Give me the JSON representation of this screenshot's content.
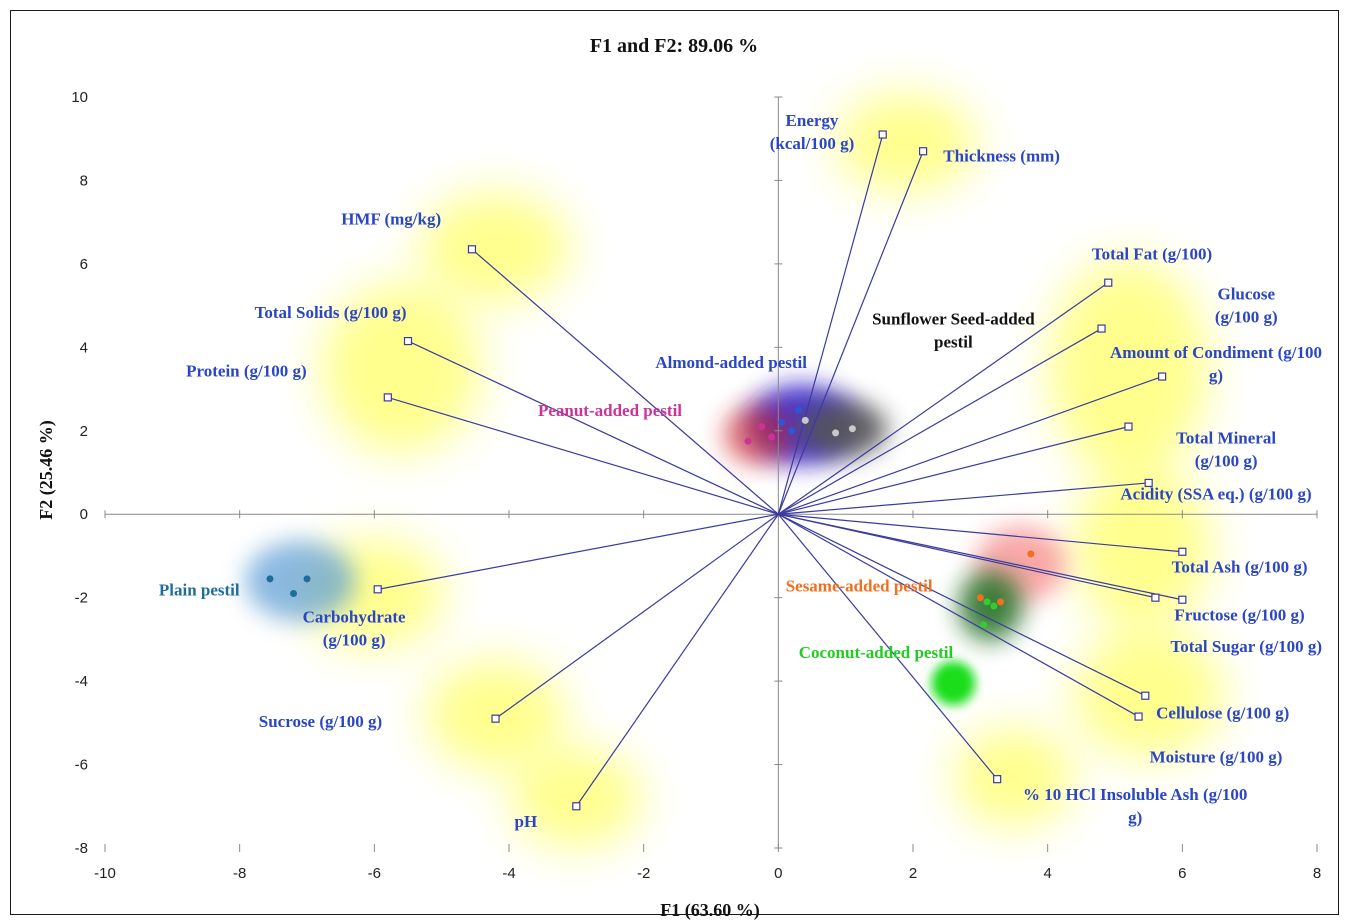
{
  "chart_data": {
    "type": "scatter",
    "title": "F1 and F2: 89.06 %",
    "xlabel": "F1 (63.60 %)",
    "ylabel": "F2 (25.46 %)",
    "xlim": [
      -10,
      8
    ],
    "ylim": [
      -8,
      10
    ],
    "x_ticks": [
      -10,
      -8,
      -6,
      -4,
      -2,
      0,
      2,
      4,
      6,
      8
    ],
    "y_ticks": [
      -8,
      -6,
      -4,
      -2,
      0,
      2,
      4,
      6,
      8,
      10
    ],
    "grid": false,
    "variables": [
      {
        "name": "Energy (kcal/100 g)",
        "label_lines": [
          "Energy",
          "(kcal/100 g)"
        ],
        "x": 1.55,
        "y": 9.1
      },
      {
        "name": "Thickness (mm)",
        "label_lines": [
          "Thickness (mm)"
        ],
        "x": 2.15,
        "y": 8.7
      },
      {
        "name": "HMF (mg/kg)",
        "label_lines": [
          "HMF (mg/kg)"
        ],
        "x": -4.55,
        "y": 6.35
      },
      {
        "name": "Total Solids (g/100 g)",
        "label_lines": [
          "Total Solids (g/100 g)"
        ],
        "x": -5.5,
        "y": 4.15
      },
      {
        "name": "Protein (g/100 g)",
        "label_lines": [
          "Protein  (g/100 g)"
        ],
        "x": -5.8,
        "y": 2.8
      },
      {
        "name": "Total Fat (g/100)",
        "label_lines": [
          "Total Fat (g/100)"
        ],
        "x": 4.9,
        "y": 5.55
      },
      {
        "name": "Glucose (g/100 g)",
        "label_lines": [
          "Glucose",
          "(g/100 g)"
        ],
        "x": 4.8,
        "y": 4.45
      },
      {
        "name": "Amount of Condiment (g/100 g)",
        "label_lines": [
          "Amount of Condiment (g/100",
          "g)"
        ],
        "x": 5.7,
        "y": 3.3
      },
      {
        "name": "Total Mineral (g/100 g)",
        "label_lines": [
          "Total Mineral",
          "(g/100 g)"
        ],
        "x": 5.2,
        "y": 2.1
      },
      {
        "name": "Acidity (SSA eq.) (g/100 g)",
        "label_lines": [
          "Acidity (SSA eq.) (g/100 g)"
        ],
        "x": 5.5,
        "y": 0.75
      },
      {
        "name": "Total Ash (g/100 g)",
        "label_lines": [
          "Total Ash (g/100 g)"
        ],
        "x": 6.0,
        "y": -0.9
      },
      {
        "name": "Fructose (g/100 g)",
        "label_lines": [
          "Fructose (g/100 g)"
        ],
        "x": 6.0,
        "y": -2.05
      },
      {
        "name": "Total Sugar (g/100 g)",
        "label_lines": [
          "Total Sugar (g/100 g)"
        ],
        "x": 5.6,
        "y": -2.0
      },
      {
        "name": "Cellulose (g/100 g)",
        "label_lines": [
          "Cellulose (g/100 g)"
        ],
        "x": 5.45,
        "y": -4.35
      },
      {
        "name": "Moisture (g/100 g)",
        "label_lines": [
          "Moisture (g/100 g)"
        ],
        "x": 5.35,
        "y": -4.85
      },
      {
        "name": "% 10 HCl Insoluble Ash (g/100 g)",
        "label_lines": [
          "% 10 HCl Insoluble Ash (g/100",
          "g)"
        ],
        "x": 3.25,
        "y": -6.35
      },
      {
        "name": "Carbohydrate (g/100 g)",
        "label_lines": [
          "Carbohydrate",
          "(g/100 g)"
        ],
        "x": -5.95,
        "y": -1.8
      },
      {
        "name": "Sucrose (g/100 g)",
        "label_lines": [
          "Sucrose  (g/100 g)"
        ],
        "x": -4.2,
        "y": -4.9
      },
      {
        "name": "pH",
        "label_lines": [
          "pH"
        ],
        "x": -3.0,
        "y": -7.0
      }
    ],
    "observations": [
      {
        "name": "Plain pestil",
        "label_lines": [
          "Plain pestil"
        ],
        "color": "#1f6e98",
        "points": [
          [
            -7.55,
            -1.55
          ],
          [
            -7.2,
            -1.9
          ],
          [
            -7.0,
            -1.55
          ]
        ]
      },
      {
        "name": "Almond-added pestil",
        "label_lines": [
          "Almond-added pestil"
        ],
        "color": "#2e56d8",
        "points": [
          [
            0.05,
            2.2
          ],
          [
            0.3,
            2.5
          ],
          [
            0.2,
            2.0
          ]
        ]
      },
      {
        "name": "Peanut-added pestil",
        "label_lines": [
          "Peanut-added pestil"
        ],
        "color": "#cc3399",
        "points": [
          [
            -0.25,
            2.1
          ],
          [
            -0.45,
            1.75
          ],
          [
            -0.1,
            1.85
          ]
        ]
      },
      {
        "name": "Sunflower Seed-added pestil",
        "label_lines": [
          "Sunflower  Seed-added",
          "pestil"
        ],
        "color": "#c9c9c9",
        "points": [
          [
            0.4,
            2.25
          ],
          [
            0.85,
            1.95
          ],
          [
            1.1,
            2.05
          ]
        ]
      },
      {
        "name": "Sesame-added pestil",
        "label_lines": [
          "Sesame-added pestil"
        ],
        "color": "#f07020",
        "points": [
          [
            3.75,
            -0.95
          ],
          [
            3.0,
            -2.0
          ],
          [
            3.3,
            -2.1
          ]
        ]
      },
      {
        "name": "Coconut-added pestil",
        "label_lines": [
          "Coconut-added pestil"
        ],
        "color": "#33cc33",
        "points": [
          [
            3.1,
            -2.1
          ],
          [
            3.05,
            -2.65
          ],
          [
            3.2,
            -2.2
          ]
        ]
      }
    ]
  },
  "highlight_colors": {
    "variable_glow": "#ffff33",
    "plain_glow": "#5a9bd5",
    "almond_glow": "#2a14c8",
    "peanut_glow": "#d02020",
    "sunflower_glow": "#555555",
    "sesame_glow": "#f04040",
    "coconut_glow": "#1a6b1a",
    "coconut_spot": "#11dd11",
    "vector_line": "#3a3aa0",
    "variable_text": "#2b46c4"
  }
}
